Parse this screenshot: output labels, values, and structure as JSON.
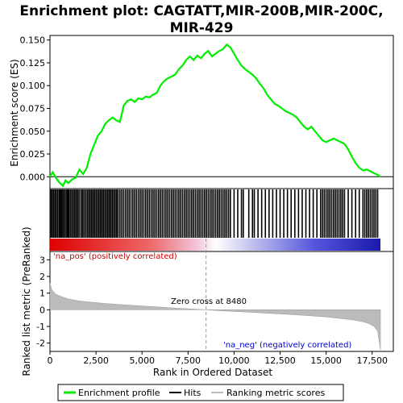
{
  "chart_data": {
    "type": "line",
    "title": "Enrichment plot: CAGTATT,MIR-200B,MIR-200C,MIR-429",
    "x_label": "Rank in Ordered Dataset",
    "x_ticks": [
      "0",
      "2,500",
      "5,000",
      "7,500",
      "10,000",
      "12,500",
      "15,000",
      "17,500"
    ],
    "x_tick_values": [
      0,
      2500,
      5000,
      7500,
      10000,
      12500,
      15000,
      17500
    ],
    "xlim": [
      0,
      18000
    ],
    "top_panel": {
      "y_label": "Enrichment score (ES)",
      "y_ticks": [
        "0.000",
        "0.025",
        "0.050",
        "0.075",
        "0.100",
        "0.125",
        "0.150"
      ],
      "y_tick_values": [
        0.0,
        0.025,
        0.05,
        0.075,
        0.1,
        0.125,
        0.15
      ],
      "ylim": [
        -0.013,
        0.155
      ],
      "series_color": "#00ee00",
      "es_profile": {
        "x": [
          0,
          150,
          350,
          500,
          700,
          850,
          1000,
          1200,
          1400,
          1600,
          1800,
          2000,
          2200,
          2400,
          2600,
          2800,
          3000,
          3200,
          3400,
          3600,
          3800,
          4000,
          4200,
          4400,
          4600,
          4800,
          5000,
          5200,
          5400,
          5600,
          5800,
          6000,
          6200,
          6400,
          6600,
          6800,
          7000,
          7200,
          7400,
          7600,
          7800,
          8000,
          8200,
          8400,
          8600,
          8800,
          9000,
          9200,
          9400,
          9600,
          9800,
          10000,
          10200,
          10400,
          10600,
          10800,
          11000,
          11200,
          11400,
          11600,
          11800,
          12000,
          12200,
          12400,
          12600,
          12800,
          13000,
          13200,
          13400,
          13600,
          13800,
          14000,
          14200,
          14400,
          14600,
          14800,
          15000,
          15200,
          15400,
          15600,
          15800,
          16000,
          16200,
          16400,
          16600,
          16800,
          17000,
          17200,
          17400,
          17600,
          17800,
          17950
        ],
        "y": [
          0.0,
          0.005,
          -0.002,
          -0.006,
          -0.01,
          -0.004,
          -0.007,
          -0.003,
          -0.001,
          0.008,
          0.003,
          0.01,
          0.025,
          0.035,
          0.045,
          0.05,
          0.058,
          0.062,
          0.065,
          0.062,
          0.06,
          0.078,
          0.083,
          0.085,
          0.082,
          0.086,
          0.085,
          0.088,
          0.087,
          0.09,
          0.092,
          0.1,
          0.105,
          0.108,
          0.11,
          0.112,
          0.118,
          0.122,
          0.128,
          0.132,
          0.128,
          0.133,
          0.13,
          0.135,
          0.138,
          0.132,
          0.135,
          0.138,
          0.14,
          0.145,
          0.142,
          0.135,
          0.128,
          0.122,
          0.118,
          0.115,
          0.112,
          0.108,
          0.102,
          0.097,
          0.09,
          0.085,
          0.08,
          0.078,
          0.075,
          0.072,
          0.07,
          0.068,
          0.065,
          0.06,
          0.055,
          0.052,
          0.055,
          0.05,
          0.045,
          0.04,
          0.038,
          0.04,
          0.042,
          0.04,
          0.038,
          0.036,
          0.03,
          0.022,
          0.015,
          0.01,
          0.007,
          0.008,
          0.006,
          0.004,
          0.002,
          0.0
        ]
      }
    },
    "hits_panel": {
      "hit_ranks": [
        60,
        130,
        200,
        280,
        350,
        430,
        510,
        580,
        650,
        720,
        800,
        880,
        950,
        1020,
        1100,
        1180,
        1260,
        1340,
        1420,
        1500,
        1580,
        1680,
        1760,
        1840,
        1930,
        2020,
        2100,
        2180,
        2260,
        2340,
        2420,
        2500,
        2580,
        2660,
        2740,
        2820,
        2900,
        2980,
        3060,
        3140,
        3220,
        3300,
        3380,
        3460,
        3540,
        3620,
        3700,
        3800,
        3900,
        4000,
        4100,
        4200,
        4300,
        4400,
        4500,
        4600,
        4700,
        4800,
        4900,
        5000,
        5100,
        5200,
        5300,
        5400,
        5500,
        5600,
        5700,
        5800,
        5900,
        6000,
        6100,
        6200,
        6300,
        6400,
        6500,
        6600,
        6700,
        6800,
        6900,
        7000,
        7100,
        7200,
        7300,
        7400,
        7500,
        7600,
        7700,
        7800,
        7900,
        8000,
        8100,
        8200,
        8300,
        8400,
        8500,
        8600,
        8700,
        8800,
        8900,
        9000,
        9100,
        9200,
        9300,
        9400,
        9500,
        9600,
        9700,
        9800,
        10000,
        10200,
        10400,
        10500,
        10800,
        11000,
        11100,
        11300,
        11500,
        11700,
        11900,
        12100,
        12300,
        12500,
        12700,
        12900,
        13100,
        13300,
        13500,
        13700,
        13900,
        14100,
        14300,
        14500,
        14700,
        14800,
        14900,
        15000,
        15100,
        15200,
        15300,
        15400,
        15500,
        15600,
        15700,
        15800,
        15900,
        16000,
        16200,
        16400,
        16600,
        16800,
        17000,
        17100,
        17200,
        17300,
        17400,
        17500,
        17600,
        17700,
        17800
      ],
      "positive_color": "#dd0000",
      "negative_color": "#0000cc"
    },
    "bottom_panel": {
      "y_label": "Ranked list metric (PreRanked)",
      "y_ticks": [
        "-2",
        "-1",
        "0",
        "1",
        "2",
        "3"
      ],
      "y_tick_values": [
        -2,
        -1,
        0,
        1,
        2,
        3
      ],
      "ylim": [
        -2.5,
        3.5
      ],
      "metric_profile": {
        "x": [
          0,
          100,
          300,
          600,
          1000,
          1500,
          2000,
          3000,
          4000,
          5000,
          6000,
          7000,
          8000,
          8480,
          9000,
          10000,
          11000,
          12000,
          13000,
          14000,
          15000,
          16000,
          16500,
          17000,
          17300,
          17600,
          17800,
          17950
        ],
        "y": [
          1.6,
          1.2,
          0.95,
          0.8,
          0.65,
          0.55,
          0.48,
          0.38,
          0.3,
          0.23,
          0.16,
          0.09,
          0.03,
          0.0,
          -0.04,
          -0.1,
          -0.16,
          -0.22,
          -0.28,
          -0.35,
          -0.43,
          -0.55,
          -0.62,
          -0.72,
          -0.82,
          -1.0,
          -1.3,
          -2.4
        ]
      },
      "zero_cross_label": "Zero cross at 8480",
      "zero_cross": 8480,
      "pos_label": "'na_pos' (positively correlated)",
      "neg_label": "'na_neg' (negatively correlated)"
    },
    "legend": {
      "placement": "bottom",
      "entries": [
        {
          "label": "Enrichment profile",
          "color": "#00ee00"
        },
        {
          "label": "Hits",
          "color": "#000000"
        },
        {
          "label": "Ranking metric scores",
          "color": "#bbbbbb"
        }
      ]
    }
  }
}
